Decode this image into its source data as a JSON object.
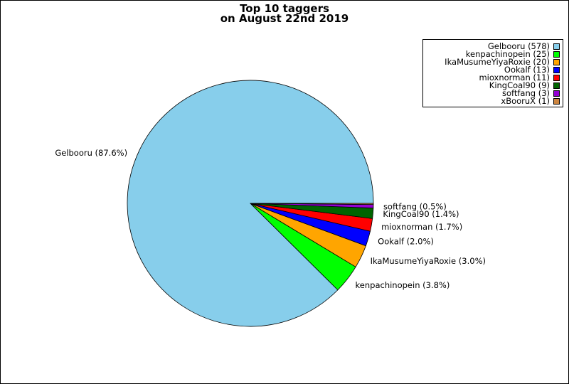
{
  "chart_data": {
    "type": "pie",
    "title_lines": [
      "Top 10 taggers",
      "on August 22nd 2019"
    ],
    "legend_position": "top-right",
    "slices": [
      {
        "name": "Gelbooru",
        "value": 578,
        "label": "Gelbooru (87.6%)",
        "legend": "Gelbooru (578)",
        "color": "#87ceeb"
      },
      {
        "name": "kenpachinopein",
        "value": 25,
        "label": "kenpachinopein (3.8%)",
        "legend": "kenpachinopein (25)",
        "color": "#00ff00"
      },
      {
        "name": "IkaMusumeYiyaRoxie",
        "value": 20,
        "label": "IkaMusumeYiyaRoxie (3.0%)",
        "legend": "IkaMusumeYiyaRoxie (20)",
        "color": "#ffa500"
      },
      {
        "name": "Ookalf",
        "value": 13,
        "label": "Ookalf (2.0%)",
        "legend": "Ookalf (13)",
        "color": "#0000ff"
      },
      {
        "name": "mioxnorman",
        "value": 11,
        "label": "mioxnorman (1.7%)",
        "legend": "mioxnorman (11)",
        "color": "#ff0000"
      },
      {
        "name": "KingCoal90",
        "value": 9,
        "label": "KingCoal90 (1.4%)",
        "legend": "KingCoal90 (9)",
        "color": "#006400"
      },
      {
        "name": "softfang",
        "value": 3,
        "label": "softfang (0.5%)",
        "legend": "softfang (3)",
        "color": "#9400d3"
      },
      {
        "name": "xBooruX",
        "value": 1,
        "label": "",
        "legend": "xBooruX (1)",
        "color": "#cd853f"
      }
    ]
  }
}
